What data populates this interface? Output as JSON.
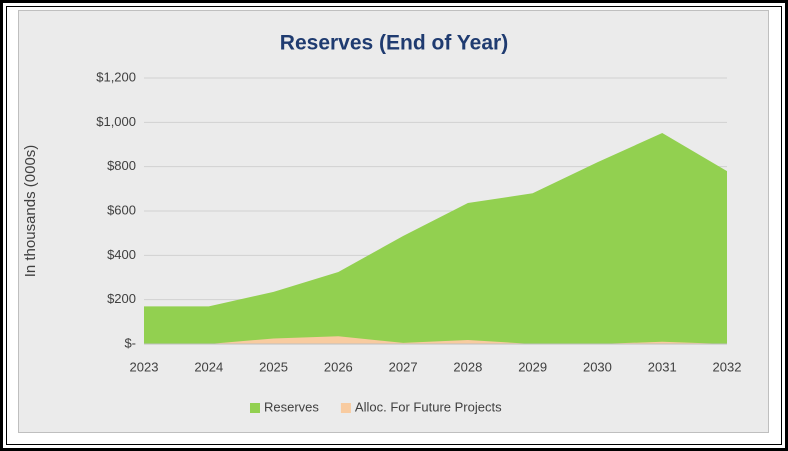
{
  "chart_data": {
    "type": "area",
    "title": "Reserves (End of Year)",
    "y_label": "In thousands (000s)",
    "categories": [
      "2023",
      "2024",
      "2025",
      "2026",
      "2027",
      "2028",
      "2029",
      "2030",
      "2031",
      "2032"
    ],
    "series": [
      {
        "name": "Reserves",
        "color": "#92d050",
        "values": [
          170,
          170,
          235,
          325,
          487,
          636,
          680,
          820,
          952,
          780
        ]
      },
      {
        "name": "Alloc. For Future Projects",
        "color": "#f8cba0",
        "values": [
          0,
          0,
          25,
          35,
          5,
          18,
          0,
          0,
          10,
          0
        ]
      }
    ],
    "ylim": [
      0,
      1200
    ],
    "yticks": [
      {
        "value": 0,
        "label": "$-"
      },
      {
        "value": 200,
        "label": "$200"
      },
      {
        "value": 400,
        "label": "$400"
      },
      {
        "value": 600,
        "label": "$600"
      },
      {
        "value": 800,
        "label": "$800"
      },
      {
        "value": 1000,
        "label": "$1,000"
      },
      {
        "value": 1200,
        "label": "$1,200"
      }
    ],
    "grid": true,
    "legend": "bottom"
  }
}
